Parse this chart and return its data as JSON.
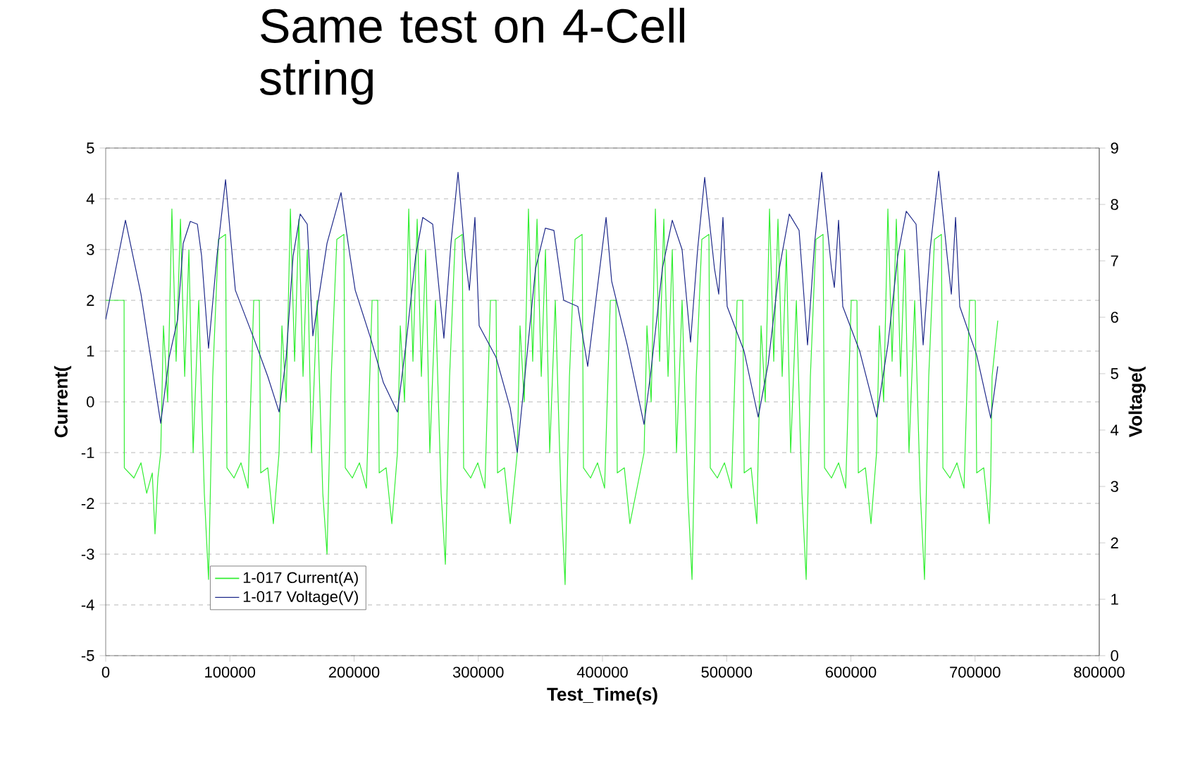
{
  "chart_data": {
    "type": "line",
    "title": "Same test on 4-Cell string",
    "xlabel": "Test_Time(s)",
    "ylabel": "Current(",
    "y2label": "Voltage(",
    "xlim": [
      0,
      800000
    ],
    "xticks": [
      0,
      100000,
      200000,
      300000,
      400000,
      500000,
      600000,
      700000,
      800000
    ],
    "ylim": [
      -5,
      5
    ],
    "yticks": [
      -5,
      -4,
      -3,
      -2,
      -1,
      0,
      1,
      2,
      3,
      4,
      5
    ],
    "y2lim": [
      0,
      9
    ],
    "y2ticks": [
      0,
      1,
      2,
      3,
      4,
      5,
      6,
      7,
      8,
      9
    ],
    "grid": "y",
    "legend": "bottom left",
    "series": [
      {
        "name": "1-017 Current(A)",
        "color": "#33ee33",
        "x": [
          0,
          14800,
          15000,
          22700,
          28400,
          33000,
          37500,
          39700,
          42000,
          44300,
          46500,
          49900,
          53300,
          56700,
          60200,
          63600,
          67000,
          70400,
          74900,
          79400,
          82800,
          86200,
          90800,
          96500,
          97600,
          103300,
          108900,
          114600,
          119200,
          123700,
          124800,
          130500,
          135000,
          139600,
          141900,
          145300,
          148700,
          152100,
          155500,
          158900,
          162300,
          165700,
          170200,
          174800,
          178200,
          181600,
          186100,
          191800,
          192900,
          198600,
          204300,
          209900,
          214500,
          219000,
          220200,
          225800,
          230400,
          234900,
          237200,
          240600,
          244000,
          247400,
          250800,
          254200,
          257600,
          261000,
          265500,
          270100,
          273500,
          276900,
          281400,
          287100,
          288200,
          293900,
          299600,
          305300,
          309800,
          314300,
          315500,
          321100,
          325700,
          331400,
          333600,
          337000,
          340400,
          343800,
          347300,
          350700,
          354100,
          357500,
          362000,
          366500,
          369900,
          373400,
          377900,
          383600,
          384700,
          390400,
          396000,
          401700,
          406300,
          410800,
          411900,
          417600,
          422100,
          433500,
          435800,
          439200,
          442600,
          446000,
          449400,
          452800,
          456200,
          459600,
          464100,
          468700,
          472100,
          475500,
          480000,
          485700,
          486800,
          492500,
          498200,
          503900,
          508400,
          512900,
          514100,
          519700,
          524300,
          525400,
          527700,
          531100,
          534500,
          537900,
          541300,
          544700,
          548100,
          551500,
          556100,
          560600,
          564000,
          567400,
          571900,
          577600,
          578800,
          584400,
          590100,
          595800,
          600300,
          604900,
          606000,
          611700,
          616200,
          620700,
          623000,
          626400,
          629800,
          633200,
          636600,
          640000,
          643400,
          646800,
          651400,
          655900,
          659300,
          662700,
          667300,
          672900,
          674100,
          679800,
          685400,
          691100,
          695600,
          700200,
          701300,
          707000,
          711500,
          712600,
          713700,
          718300
        ],
        "values": [
          2.0,
          2.0,
          -1.3,
          -1.5,
          -1.2,
          -1.8,
          -1.4,
          -2.6,
          -1.5,
          -1.0,
          1.5,
          0.0,
          3.8,
          0.8,
          3.6,
          0.5,
          3.0,
          -1.0,
          2.0,
          -1.8,
          -3.5,
          0.5,
          3.2,
          3.3,
          -1.3,
          -1.5,
          -1.2,
          -1.7,
          2.0,
          2.0,
          -1.4,
          -1.3,
          -2.4,
          -1.0,
          1.5,
          0.0,
          3.8,
          0.8,
          3.6,
          0.5,
          3.0,
          -1.0,
          2.0,
          -1.8,
          -3.0,
          0.5,
          3.2,
          3.3,
          -1.3,
          -1.5,
          -1.2,
          -1.7,
          2.0,
          2.0,
          -1.4,
          -1.3,
          -2.4,
          -1.0,
          1.5,
          0.0,
          3.8,
          0.8,
          3.6,
          0.5,
          3.0,
          -1.0,
          2.0,
          -1.8,
          -3.2,
          0.5,
          3.2,
          3.3,
          -1.3,
          -1.5,
          -1.2,
          -1.7,
          2.0,
          2.0,
          -1.4,
          -1.3,
          -2.4,
          -1.0,
          1.5,
          0.0,
          3.8,
          0.8,
          3.6,
          0.5,
          3.0,
          -1.0,
          2.0,
          -1.8,
          -3.6,
          0.5,
          3.2,
          3.3,
          -1.3,
          -1.5,
          -1.2,
          -1.7,
          2.0,
          2.0,
          -1.4,
          -1.3,
          -2.4,
          -1.0,
          1.5,
          0.0,
          3.8,
          0.8,
          3.6,
          0.5,
          3.0,
          -1.0,
          2.0,
          -1.8,
          -3.5,
          0.5,
          3.2,
          3.3,
          -1.3,
          -1.5,
          -1.2,
          -1.7,
          2.0,
          2.0,
          -1.4,
          -1.3,
          -2.4,
          -1.0,
          1.5,
          0.0,
          3.8,
          0.8,
          3.6,
          0.5,
          3.0,
          -1.0,
          2.0,
          -1.8,
          -3.5,
          0.5,
          3.2,
          3.3,
          -1.3,
          -1.5,
          -1.2,
          -1.7,
          2.0,
          2.0,
          -1.4,
          -1.3,
          -2.4,
          -1.0,
          1.5,
          0.0,
          3.8,
          0.8,
          3.6,
          0.5,
          3.0,
          -1.0,
          2.0,
          -1.8,
          -3.5,
          0.5,
          3.2,
          3.3,
          -1.3,
          -1.5,
          -1.2,
          -1.7,
          2.0,
          2.0,
          -1.4,
          -1.3,
          -2.4,
          -1.5,
          0.5,
          1.6
        ]
      },
      {
        "name": "1-017 Voltage(V)",
        "color": "#1f2a8a",
        "axis": "y2",
        "x": [
          0,
          15900,
          28400,
          44300,
          51100,
          57900,
          62400,
          68100,
          73800,
          77200,
          82800,
          89600,
          96500,
          101000,
          104400,
          119200,
          130500,
          139600,
          145300,
          150900,
          156600,
          162300,
          166800,
          178200,
          189500,
          195200,
          200900,
          213300,
          223600,
          234900,
          241700,
          249600,
          255300,
          263300,
          272300,
          278000,
          283700,
          289400,
          292800,
          297300,
          300700,
          314300,
          325700,
          331400,
          337000,
          346100,
          354000,
          360900,
          368800,
          380200,
          388100,
          402900,
          407400,
          419900,
          433500,
          439100,
          448200,
          456200,
          464100,
          470900,
          476600,
          482300,
          490200,
          493600,
          497000,
          500400,
          514000,
          525400,
          533400,
          542400,
          550400,
          558300,
          565100,
          570800,
          576500,
          584400,
          586700,
          590100,
          593500,
          607100,
          620700,
          629800,
          637800,
          644600,
          652500,
          658200,
          663800,
          670700,
          677500,
          680900,
          684300,
          687700,
          701300,
          712600,
          718300
        ],
        "values": [
          5.96,
          7.72,
          6.41,
          4.12,
          5.29,
          5.96,
          7.31,
          7.7,
          7.65,
          7.09,
          5.45,
          7.09,
          8.44,
          7.31,
          6.48,
          5.63,
          4.95,
          4.32,
          5.29,
          7.09,
          7.83,
          7.65,
          5.67,
          7.31,
          8.21,
          7.31,
          6.48,
          5.63,
          4.84,
          4.32,
          5.51,
          7.09,
          7.77,
          7.65,
          5.63,
          7.31,
          8.57,
          7.09,
          6.48,
          7.77,
          5.85,
          5.29,
          4.39,
          3.6,
          4.84,
          6.86,
          7.58,
          7.54,
          6.3,
          6.19,
          5.13,
          7.77,
          6.64,
          5.51,
          4.1,
          5.06,
          6.86,
          7.72,
          7.2,
          5.56,
          7.2,
          8.48,
          6.86,
          6.41,
          7.77,
          6.19,
          5.4,
          4.23,
          5.17,
          6.86,
          7.83,
          7.54,
          5.51,
          7.31,
          8.57,
          6.86,
          6.53,
          7.72,
          6.19,
          5.4,
          4.23,
          5.51,
          7.09,
          7.88,
          7.65,
          5.51,
          7.2,
          8.59,
          7.09,
          6.41,
          7.77,
          6.19,
          5.33,
          4.21,
          5.13
        ]
      }
    ]
  }
}
